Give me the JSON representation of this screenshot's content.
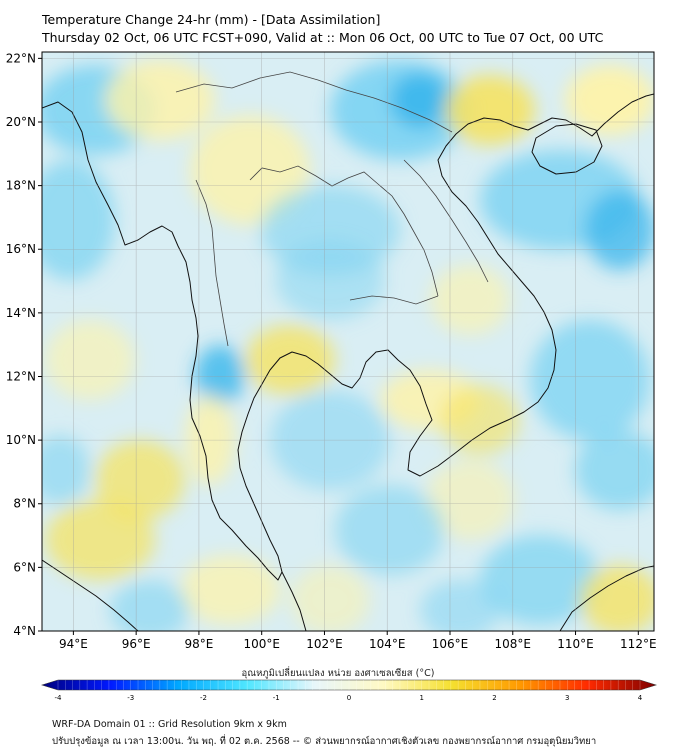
{
  "title": {
    "line1": "Temperature Change 24-hr (mm) - [Data Assimilation]",
    "line2": "Thursday 02 Oct, 06 UTC FCST+090, Valid at :: Mon 06 Oct, 00 UTC to Tue 07 Oct, 00 UTC"
  },
  "axes": {
    "lat_ticks": [
      "22°N",
      "20°N",
      "18°N",
      "16°N",
      "14°N",
      "12°N",
      "10°N",
      "8°N",
      "6°N",
      "4°N"
    ],
    "lat_values": [
      22,
      20,
      18,
      16,
      14,
      12,
      10,
      8,
      6,
      4
    ],
    "lon_ticks": [
      "94°E",
      "96°E",
      "98°E",
      "100°E",
      "102°E",
      "104°E",
      "106°E",
      "108°E",
      "110°E",
      "112°E"
    ],
    "lon_values": [
      94,
      96,
      98,
      100,
      102,
      104,
      106,
      108,
      110,
      112
    ],
    "lon_range": [
      93.0,
      112.5
    ],
    "lat_range": [
      4.0,
      22.2
    ],
    "grid": true
  },
  "colorbar": {
    "label": "อุณหภูมิเปลี่ยนแปลง หน่วย องศาเซลเซียส (°C)",
    "min": -4,
    "max": 4,
    "tick_labels": [
      "-4",
      "-3",
      "-2",
      "-1",
      "0",
      "1",
      "2",
      "3",
      "4"
    ],
    "colors": [
      "#00007f",
      "#0019ff",
      "#00a8ff",
      "#4fe6ff",
      "#e8f6fa",
      "#fff9c4",
      "#f5e030",
      "#ff9a00",
      "#ff2a00",
      "#7f0000"
    ]
  },
  "field_colors": {
    "cool": "#7fd4f2",
    "cool_strong": "#38b6ec",
    "neutral": "#d9eef4",
    "warm": "#fff3a6",
    "warm_strong": "#f7e25a",
    "coast": "#111111",
    "border": "#444444"
  },
  "footer": {
    "line1": "WRF-DA Domain 01 :: Grid Resolution 9km x 9km",
    "line2": "ปรับปรุงข้อมูล ณ เวลา 13:00น. วัน พฤ. ที่ 02 ต.ค. 2568 -- © ส่วนพยากรณ์อากาศเชิงตัวเลข กองพยากรณ์อากาศ กรมอุตุนิยมวิทยา"
  }
}
